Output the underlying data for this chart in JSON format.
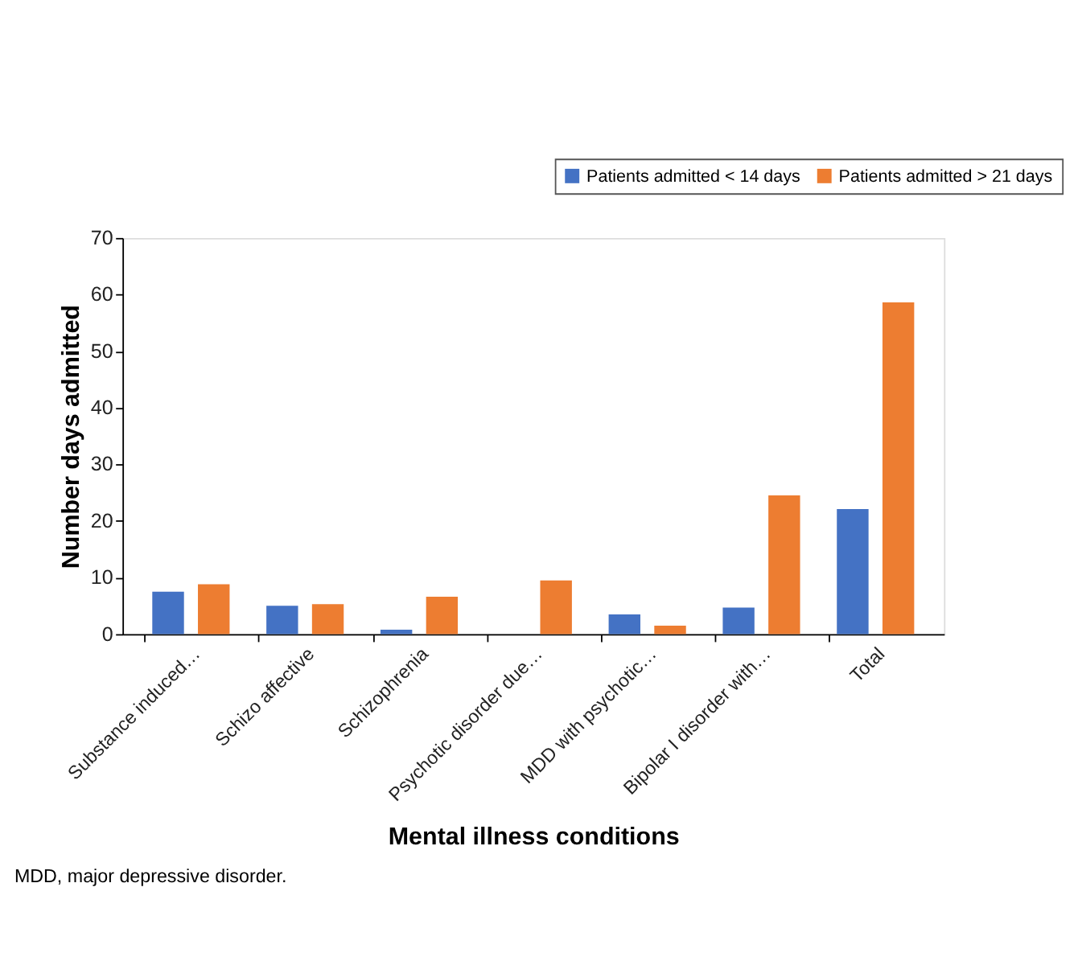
{
  "chart_data": {
    "type": "bar",
    "xlabel": "Mental illness conditions",
    "ylabel": "Number days admitted",
    "categories": [
      "Substance induced…",
      "Schizo affective",
      "Schizophrenia",
      "Psychotic disorder due…",
      "MDD with psychotic…",
      "Bipolar I disorder with…",
      "Total"
    ],
    "series": [
      {
        "name": "Patients admitted < 14 days",
        "color": "#4472c4",
        "values": [
          7.5,
          5,
          0.8,
          0,
          3.5,
          4.7,
          22.1
        ]
      },
      {
        "name": "Patients admitted > 21 days",
        "color": "#ed7d31",
        "values": [
          8.8,
          5.3,
          6.6,
          9.5,
          1.5,
          24.5,
          58.6
        ]
      }
    ],
    "ylim": [
      0,
      70
    ],
    "yticks": [
      0,
      10,
      20,
      30,
      40,
      50,
      60,
      70
    ],
    "grid": false,
    "legend": "top right",
    "annotations": [
      "MDD, major depressive disorder."
    ]
  }
}
